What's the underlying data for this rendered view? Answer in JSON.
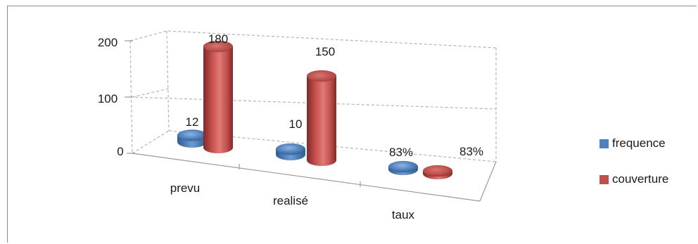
{
  "chart_data": {
    "type": "bar",
    "categories": [
      "prevu",
      "realisé",
      "taux"
    ],
    "series": [
      {
        "name": "frequence",
        "values": [
          12,
          10,
          0.83
        ],
        "labels": [
          "12",
          "10",
          "83%"
        ],
        "color": "#4f81bd"
      },
      {
        "name": "couverture",
        "values": [
          180,
          150,
          0.83
        ],
        "labels": [
          "180",
          "150",
          "83%"
        ],
        "color": "#c0504d"
      }
    ],
    "y_ticks": [
      "200",
      "100",
      "0"
    ],
    "ylim": [
      0,
      200
    ],
    "grid": true,
    "legend_position": "right",
    "style": "3d-cylinder"
  }
}
